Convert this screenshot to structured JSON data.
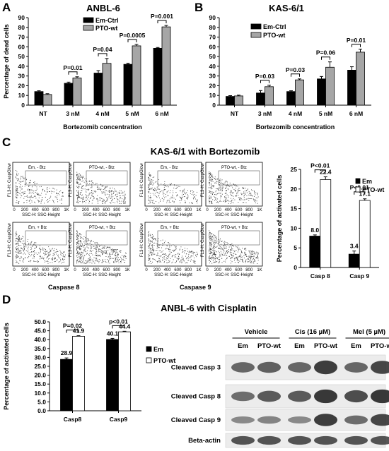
{
  "figure": {
    "panel_letters": {
      "A": "A",
      "B": "B",
      "C": "C",
      "D": "D"
    },
    "panel_titles": {
      "A": "ANBL-6",
      "B": "KAS-6/1",
      "C": "KAS-6/1  with  Bortezomib",
      "D": "ANBL-6  with  Cisplatin"
    },
    "colors": {
      "em": "#000000",
      "pto_a": "#a6a6a6",
      "pto_c": "#ffffff",
      "blot_bg": "#ececec",
      "band": "#2a2a2a",
      "flow_bg": "#ffffff"
    }
  },
  "chart_data": [
    {
      "id": "A",
      "type": "bar",
      "title": "ANBL-6",
      "categories": [
        "NT",
        "3 nM",
        "4 nM",
        "5 nM",
        "6 nM"
      ],
      "series": [
        {
          "name": "Em-Ctrl",
          "values": [
            14,
            22.5,
            33,
            42,
            58.5
          ],
          "errors": [
            0.8,
            1.2,
            2.5,
            1.2,
            0.8
          ]
        },
        {
          "name": "PTO-wt",
          "values": [
            11,
            28,
            43,
            61,
            80.5
          ],
          "errors": [
            0.8,
            1.2,
            5,
            1.5,
            1.5
          ]
        }
      ],
      "xlabel": "Bortezomib concentration",
      "ylabel": "Percentage of dead cells",
      "yticks": [
        "0",
        "10",
        "20",
        "30",
        "40",
        "50",
        "60",
        "70",
        "80",
        "90"
      ],
      "ylim": [
        0,
        90
      ],
      "pvalues": [
        {
          "between": 1,
          "text": "P=0.01"
        },
        {
          "between": 2,
          "text": "P=0.04"
        },
        {
          "between": 3,
          "text": "P=0.0005"
        },
        {
          "between": 4,
          "text": "P=0.001"
        }
      ],
      "legend": "top-left"
    },
    {
      "id": "B",
      "type": "bar",
      "title": "KAS-6/1",
      "categories": [
        "NT",
        "3 nM",
        "4 nM",
        "5 nM",
        "6 nM"
      ],
      "series": [
        {
          "name": "Em-Ctrl",
          "values": [
            9,
            12.5,
            14,
            27,
            36
          ],
          "errors": [
            0.8,
            2.5,
            0.8,
            2.5,
            3.5
          ]
        },
        {
          "name": "PTO-wt",
          "values": [
            9.5,
            19,
            26,
            39,
            54.5
          ],
          "errors": [
            0.8,
            1.5,
            1,
            5.5,
            3
          ]
        }
      ],
      "xlabel": "Bortezomib concentration",
      "ylabel": "",
      "yticks": [
        "0",
        "10",
        "20",
        "30",
        "40",
        "50",
        "60",
        "70",
        "80",
        "90"
      ],
      "ylim": [
        0,
        90
      ],
      "pvalues": [
        {
          "between": 1,
          "text": "P=0.03"
        },
        {
          "between": 2,
          "text": "P=0.03"
        },
        {
          "between": 3,
          "text": "P=0.06"
        },
        {
          "between": 4,
          "text": "P=0.01"
        }
      ],
      "legend": "top-left"
    },
    {
      "id": "C",
      "type": "bar",
      "categories": [
        "Casp 8",
        "Casp 9"
      ],
      "series": [
        {
          "name": "Em",
          "values": [
            8.0,
            3.4
          ],
          "labels": [
            "8.0",
            "3.4"
          ],
          "errors": [
            0.3,
            0.8
          ]
        },
        {
          "name": "PTO-wt",
          "values": [
            22.4,
            17.1
          ],
          "labels": [
            "22.4",
            "17.1"
          ],
          "errors": [
            0.7,
            0.4
          ]
        }
      ],
      "ylabel": "Percentage of activated cells",
      "yticks": [
        "0",
        "5",
        "10",
        "15",
        "20",
        "25"
      ],
      "ylim": [
        0,
        25
      ],
      "pvalues": [
        {
          "between": 0,
          "text": "P<0.01"
        },
        {
          "between": 1,
          "text": "P<0.01"
        }
      ],
      "legend": "top-right"
    },
    {
      "id": "D",
      "type": "bar",
      "categories": [
        "Casp8",
        "Casp9"
      ],
      "series": [
        {
          "name": "Em",
          "values": [
            28.9,
            40.1
          ],
          "labels": [
            "28.9",
            "40.1"
          ],
          "errors": [
            0.8,
            0.6
          ]
        },
        {
          "name": "PTO-wt",
          "values": [
            41.9,
            44.4
          ],
          "labels": [
            "41.9",
            "44.4"
          ],
          "errors": [
            0.3,
            0.3
          ]
        }
      ],
      "ylabel": "Percentage of activated cells",
      "yticks": [
        "0.0",
        "5.0",
        "10.0",
        "15.0",
        "20.0",
        "25.0",
        "30.0",
        "35.0",
        "40.0",
        "45.0",
        "50.0"
      ],
      "ylim": [
        0,
        50
      ],
      "pvalues": [
        {
          "between": 0,
          "text": "P=0.02"
        },
        {
          "between": 1,
          "text": "p<0.01"
        }
      ],
      "legend": "right"
    }
  ],
  "flow": {
    "panels": [
      {
        "label": "Em, - Btz"
      },
      {
        "label": "PTO-wt, - Btz"
      },
      {
        "label": "Em, - Btz"
      },
      {
        "label": "PTO-wt, - Btz"
      },
      {
        "label": "Em, + Btz"
      },
      {
        "label": "PTO-wt, + Btz"
      },
      {
        "label": "Em, + Btz"
      },
      {
        "label": "PTO-wt, + Btz"
      }
    ],
    "y_axis": "FL3-H: CaspGlow",
    "x_axis": "SSC-H: SSC-Height",
    "ticks": [
      "0",
      "200",
      "400",
      "600",
      "800",
      "1K"
    ],
    "group_labels": [
      "Caspase 8",
      "Caspase 9"
    ]
  },
  "blot": {
    "groups": [
      "Vehicle",
      "Cis (16 µM)",
      "Mel (5 µM)"
    ],
    "lanes": [
      "Em",
      "PTO-wt",
      "Em",
      "PTO-wt",
      "Em",
      "PTO-wt"
    ],
    "rows": [
      {
        "label": "Cleaved Casp 3",
        "intensities": [
          0.55,
          0.6,
          0.55,
          0.85,
          0.55,
          0.8
        ]
      },
      {
        "label": "Cleaved Casp 8",
        "intensities": [
          0.5,
          0.65,
          0.65,
          0.9,
          0.75,
          0.9
        ]
      },
      {
        "label": "Cleaved Casp 9",
        "intensities": [
          0.3,
          0.35,
          0.3,
          0.85,
          0.5,
          0.8
        ]
      },
      {
        "label": "Beta-actin",
        "intensities": [
          0.7,
          0.7,
          0.7,
          0.7,
          0.7,
          0.7
        ]
      }
    ]
  }
}
